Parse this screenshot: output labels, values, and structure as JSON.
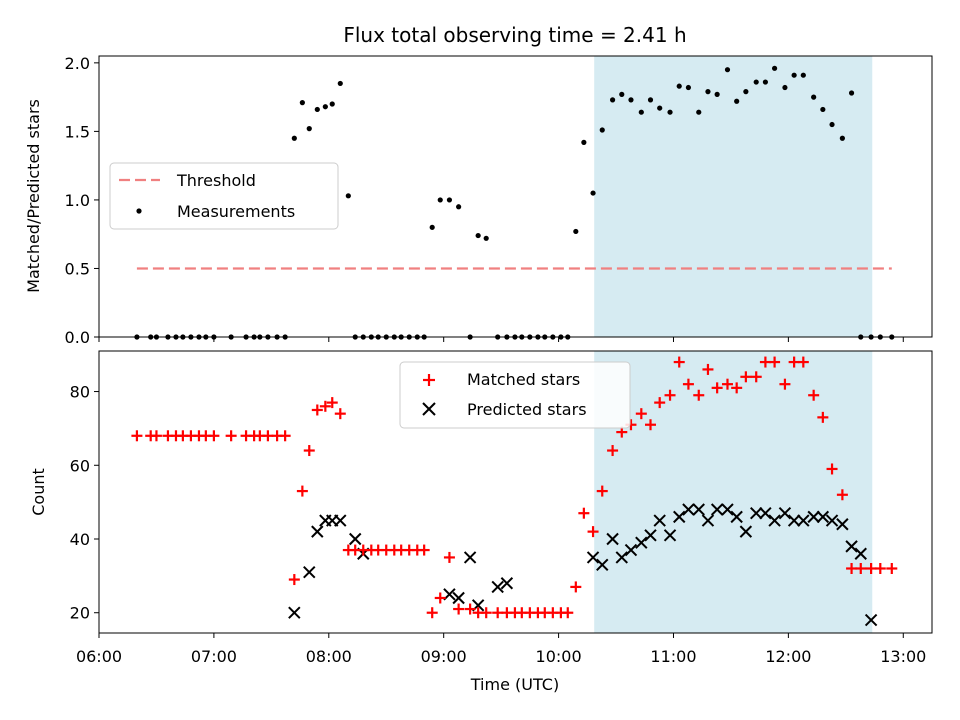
{
  "chart_data": [
    {
      "type": "scatter",
      "title": "Flux total observing time = 2.41 h",
      "xlabel": "",
      "ylabel": "Matched/Predicted stars",
      "ylim": [
        0,
        2.05
      ],
      "yticks": [
        "0.0",
        "0.5",
        "1.0",
        "1.5",
        "2.0"
      ],
      "ytick_values": [
        0,
        0.5,
        1.0,
        1.5,
        2.0
      ],
      "shaded_span": {
        "x_start": 10.31,
        "x_end": 12.73,
        "color": "#add8e6"
      },
      "threshold": {
        "name": "Threshold",
        "value": 0.5,
        "x_start": 6.33,
        "x_end": 12.9,
        "color": "#f08080"
      },
      "legend": {
        "location": "center-left",
        "entries": [
          "Threshold",
          "Measurements"
        ]
      },
      "series": [
        {
          "name": "Measurements",
          "color": "#000000",
          "marker": "dot",
          "x": [
            6.33,
            6.45,
            6.5,
            6.6,
            6.67,
            6.73,
            6.8,
            6.87,
            6.93,
            7.0,
            7.15,
            7.28,
            7.35,
            7.4,
            7.47,
            7.55,
            7.62,
            7.7,
            7.77,
            7.83,
            7.9,
            7.97,
            8.03,
            8.1,
            8.17,
            8.23,
            8.3,
            8.37,
            8.43,
            8.5,
            8.57,
            8.63,
            8.7,
            8.77,
            8.83,
            8.9,
            8.97,
            9.05,
            9.13,
            9.23,
            9.3,
            9.37,
            9.47,
            9.55,
            9.62,
            9.68,
            9.75,
            9.82,
            9.88,
            9.95,
            10.02,
            10.08,
            10.15,
            10.22,
            10.3,
            10.38,
            10.47,
            10.55,
            10.63,
            10.72,
            10.8,
            10.88,
            10.97,
            11.05,
            11.13,
            11.22,
            11.3,
            11.38,
            11.47,
            11.55,
            11.63,
            11.72,
            11.8,
            11.88,
            11.97,
            12.05,
            12.13,
            12.22,
            12.3,
            12.38,
            12.47,
            12.55,
            12.63,
            12.72,
            12.8,
            12.9
          ],
          "y": [
            0,
            0,
            0,
            0,
            0,
            0,
            0,
            0,
            0,
            0,
            0,
            0,
            0,
            0,
            0,
            0,
            0,
            1.45,
            1.71,
            1.52,
            1.66,
            1.68,
            1.7,
            1.85,
            1.03,
            0,
            0,
            0,
            0,
            0,
            0,
            0,
            0,
            0,
            0,
            0.8,
            1.0,
            1.0,
            0.95,
            0,
            0.74,
            0.72,
            0,
            0,
            0,
            0,
            0,
            0,
            0,
            0,
            0,
            0,
            0.77,
            1.42,
            1.05,
            1.51,
            1.73,
            1.77,
            1.73,
            1.64,
            1.73,
            1.67,
            1.64,
            1.83,
            1.82,
            1.64,
            1.79,
            1.77,
            1.95,
            1.72,
            1.79,
            1.86,
            1.86,
            1.96,
            1.82,
            1.91,
            1.91,
            1.75,
            1.66,
            1.55,
            1.45,
            1.78,
            0,
            0,
            0,
            0
          ]
        }
      ]
    },
    {
      "type": "scatter",
      "title": "",
      "xlabel": "Time (UTC)",
      "ylabel": "Count",
      "xlim": [
        6.0,
        13.25
      ],
      "xticks": [
        "06:00",
        "07:00",
        "08:00",
        "09:00",
        "10:00",
        "11:00",
        "12:00",
        "13:00"
      ],
      "xtick_values": [
        6,
        7,
        8,
        9,
        10,
        11,
        12,
        13
      ],
      "ylim": [
        14.5,
        91
      ],
      "yticks": [
        "20",
        "40",
        "60",
        "80"
      ],
      "ytick_values": [
        20,
        40,
        60,
        80
      ],
      "shaded_span": {
        "x_start": 10.31,
        "x_end": 12.73,
        "color": "#add8e6"
      },
      "legend": {
        "location": "upper-center",
        "entries": [
          "Matched stars",
          "Predicted stars"
        ]
      },
      "series": [
        {
          "name": "Matched stars",
          "color": "#ff0000",
          "marker": "plus",
          "x": [
            6.33,
            6.45,
            6.5,
            6.6,
            6.67,
            6.73,
            6.8,
            6.87,
            6.93,
            7.0,
            7.15,
            7.28,
            7.35,
            7.4,
            7.47,
            7.55,
            7.62,
            7.7,
            7.77,
            7.83,
            7.9,
            7.97,
            8.03,
            8.1,
            8.17,
            8.23,
            8.3,
            8.37,
            8.43,
            8.5,
            8.57,
            8.63,
            8.7,
            8.77,
            8.83,
            8.9,
            8.97,
            9.05,
            9.13,
            9.23,
            9.3,
            9.37,
            9.47,
            9.55,
            9.62,
            9.68,
            9.75,
            9.82,
            9.88,
            9.95,
            10.02,
            10.08,
            10.15,
            10.22,
            10.3,
            10.38,
            10.47,
            10.55,
            10.63,
            10.72,
            10.8,
            10.88,
            10.97,
            11.05,
            11.13,
            11.22,
            11.3,
            11.38,
            11.47,
            11.55,
            11.63,
            11.72,
            11.8,
            11.88,
            11.97,
            12.05,
            12.13,
            12.22,
            12.3,
            12.38,
            12.47,
            12.55,
            12.63,
            12.72,
            12.8,
            12.9
          ],
          "y": [
            68,
            68,
            68,
            68,
            68,
            68,
            68,
            68,
            68,
            68,
            68,
            68,
            68,
            68,
            68,
            68,
            68,
            29,
            53,
            64,
            75,
            76,
            77,
            74,
            37,
            37,
            37,
            37,
            37,
            37,
            37,
            37,
            37,
            37,
            37,
            20,
            24,
            35,
            21,
            21,
            20,
            20,
            20,
            20,
            20,
            20,
            20,
            20,
            20,
            20,
            20,
            20,
            27,
            47,
            42,
            53,
            64,
            69,
            71,
            74,
            71,
            77,
            79,
            88,
            82,
            79,
            86,
            81,
            82,
            81,
            84,
            84,
            88,
            88,
            82,
            88,
            88,
            79,
            73,
            59,
            52,
            32,
            32,
            32,
            32,
            32
          ]
        },
        {
          "name": "Predicted stars",
          "color": "#000000",
          "marker": "x",
          "x": [
            7.7,
            7.83,
            7.9,
            7.97,
            8.03,
            8.1,
            8.23,
            8.3,
            9.05,
            9.13,
            9.23,
            9.3,
            9.47,
            9.55,
            10.3,
            10.38,
            10.47,
            10.55,
            10.63,
            10.72,
            10.8,
            10.88,
            10.97,
            11.05,
            11.13,
            11.22,
            11.3,
            11.38,
            11.47,
            11.55,
            11.63,
            11.72,
            11.8,
            11.88,
            11.97,
            12.05,
            12.13,
            12.22,
            12.3,
            12.38,
            12.47,
            12.55,
            12.63,
            12.72
          ],
          "y": [
            20,
            31,
            42,
            45,
            45,
            45,
            40,
            36,
            25,
            24,
            35,
            22,
            27,
            28,
            35,
            33,
            40,
            35,
            37,
            39,
            41,
            45,
            41,
            46,
            48,
            48,
            45,
            48,
            48,
            46,
            42,
            47,
            47,
            45,
            47,
            45,
            45,
            46,
            46,
            45,
            44,
            38,
            36,
            18
          ]
        }
      ]
    }
  ]
}
